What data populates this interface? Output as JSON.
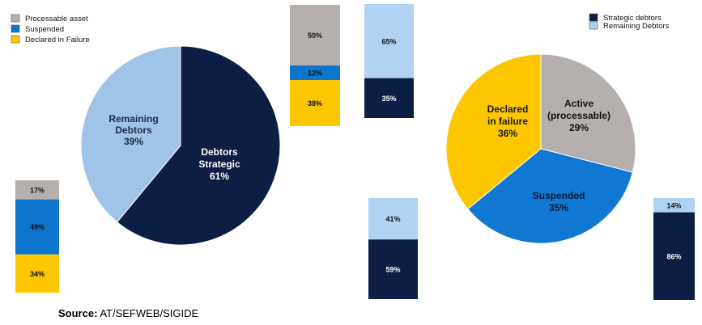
{
  "colors": {
    "navy": "#0d1e45",
    "light_blue": "#a0c4e7",
    "pale_blue": "#b0d3f3",
    "gray": "#b5b0ae",
    "blue": "#1077d3",
    "yellow": "#fcc600",
    "bar_blue": "#0b76cb"
  },
  "source": {
    "label": "Source:",
    "text": "AT/SEFWEB/SIGIDE"
  },
  "chart_data": [
    {
      "id": "pie-left",
      "type": "pie",
      "slices": [
        {
          "label_lines": [
            "Debtors",
            "Strategic",
            "61%"
          ],
          "value": 61,
          "color": "navy",
          "text_color": "#ffffff"
        },
        {
          "label_lines": [
            "Remaining",
            "Debtors",
            "39%"
          ],
          "value": 39,
          "color": "light_blue",
          "text_color": "#1a2a4a"
        }
      ]
    },
    {
      "id": "pie-right",
      "type": "pie",
      "legend": [
        {
          "label": "Strategic debtors",
          "color": "navy"
        },
        {
          "label": "Remaining Debtors",
          "color": "pale_blue"
        }
      ],
      "slices": [
        {
          "label_lines": [
            "Active",
            "(processable)",
            "29%"
          ],
          "value": 29,
          "color": "gray",
          "text_color": "#111111"
        },
        {
          "label_lines": [
            "Suspended",
            "35%"
          ],
          "value": 35,
          "color": "blue",
          "text_color": "#0a1a3a"
        },
        {
          "label_lines": [
            "Declared",
            "in failure",
            "36%"
          ],
          "value": 36,
          "color": "yellow",
          "text_color": "#1a1a1a"
        }
      ]
    },
    {
      "id": "stack-left-bottom",
      "type": "bar",
      "stacked": true,
      "legend": [
        {
          "label": "Processable asset",
          "color": "gray"
        },
        {
          "label": "Suspended",
          "color": "bar_blue"
        },
        {
          "label": "Declared in Failure",
          "color": "yellow"
        }
      ],
      "segments": [
        {
          "label": "17%",
          "value": 17,
          "color": "gray"
        },
        {
          "label": "49%",
          "value": 49,
          "color": "bar_blue"
        },
        {
          "label": "34%",
          "value": 34,
          "color": "yellow"
        }
      ]
    },
    {
      "id": "stack-center-1",
      "type": "bar",
      "stacked": true,
      "segments": [
        {
          "label": "50%",
          "value": 50,
          "color": "gray"
        },
        {
          "label": "12%",
          "value": 12,
          "color": "bar_blue"
        },
        {
          "label": "38%",
          "value": 38,
          "color": "yellow"
        }
      ]
    },
    {
      "id": "stack-center-2",
      "type": "bar",
      "stacked": true,
      "segments": [
        {
          "label": "65%",
          "value": 65,
          "color": "pale_blue"
        },
        {
          "label": "35%",
          "value": 35,
          "color": "navy"
        }
      ]
    },
    {
      "id": "stack-center-bottom",
      "type": "bar",
      "stacked": true,
      "segments": [
        {
          "label": "41%",
          "value": 41,
          "color": "pale_blue"
        },
        {
          "label": "59%",
          "value": 59,
          "color": "navy"
        }
      ]
    },
    {
      "id": "stack-right",
      "type": "bar",
      "stacked": true,
      "segments": [
        {
          "label": "14%",
          "value": 14,
          "color": "pale_blue"
        },
        {
          "label": "86%",
          "value": 86,
          "color": "navy"
        }
      ]
    }
  ]
}
